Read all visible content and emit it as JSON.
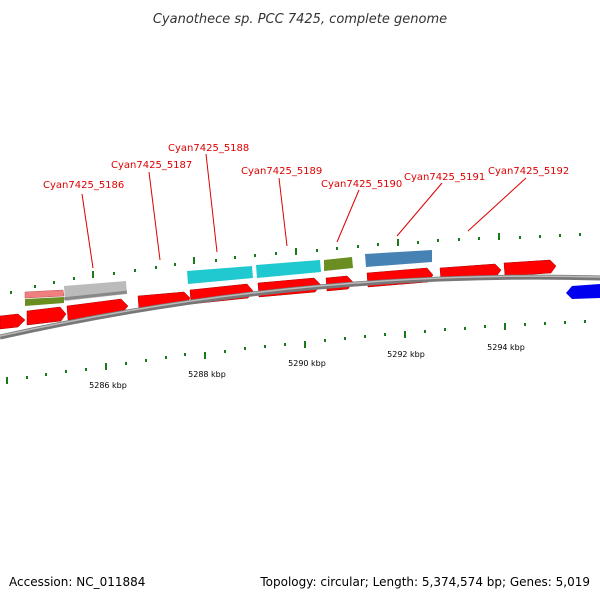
{
  "title": "Cyanothece sp. PCC 7425, complete genome",
  "footer": {
    "accession": "Accession: NC_011884",
    "summary": "Topology: circular; Length: 5,374,574 bp; Genes: 5,019"
  },
  "colors": {
    "gene_label": "#dd0000",
    "tick": "#1a7a1a",
    "backbone": "#888888",
    "forward_gene": "#ff0000",
    "reverse_gene": "#0000ff"
  },
  "gene_labels": [
    "Cyan7425_5186",
    "Cyan7425_5187",
    "Cyan7425_5188",
    "Cyan7425_5189",
    "Cyan7425_5190",
    "Cyan7425_5191",
    "Cyan7425_5192"
  ],
  "scale_labels": [
    "5286 kbp",
    "5288 kbp",
    "5290 kbp",
    "5292 kbp",
    "5294 kbp"
  ],
  "feature_colors": {
    "pink": "#f08080",
    "olive": "#6b8e23",
    "gray": "#bbbbbb",
    "cyan": "#20c8d0",
    "steelblue": "#4682b4"
  }
}
